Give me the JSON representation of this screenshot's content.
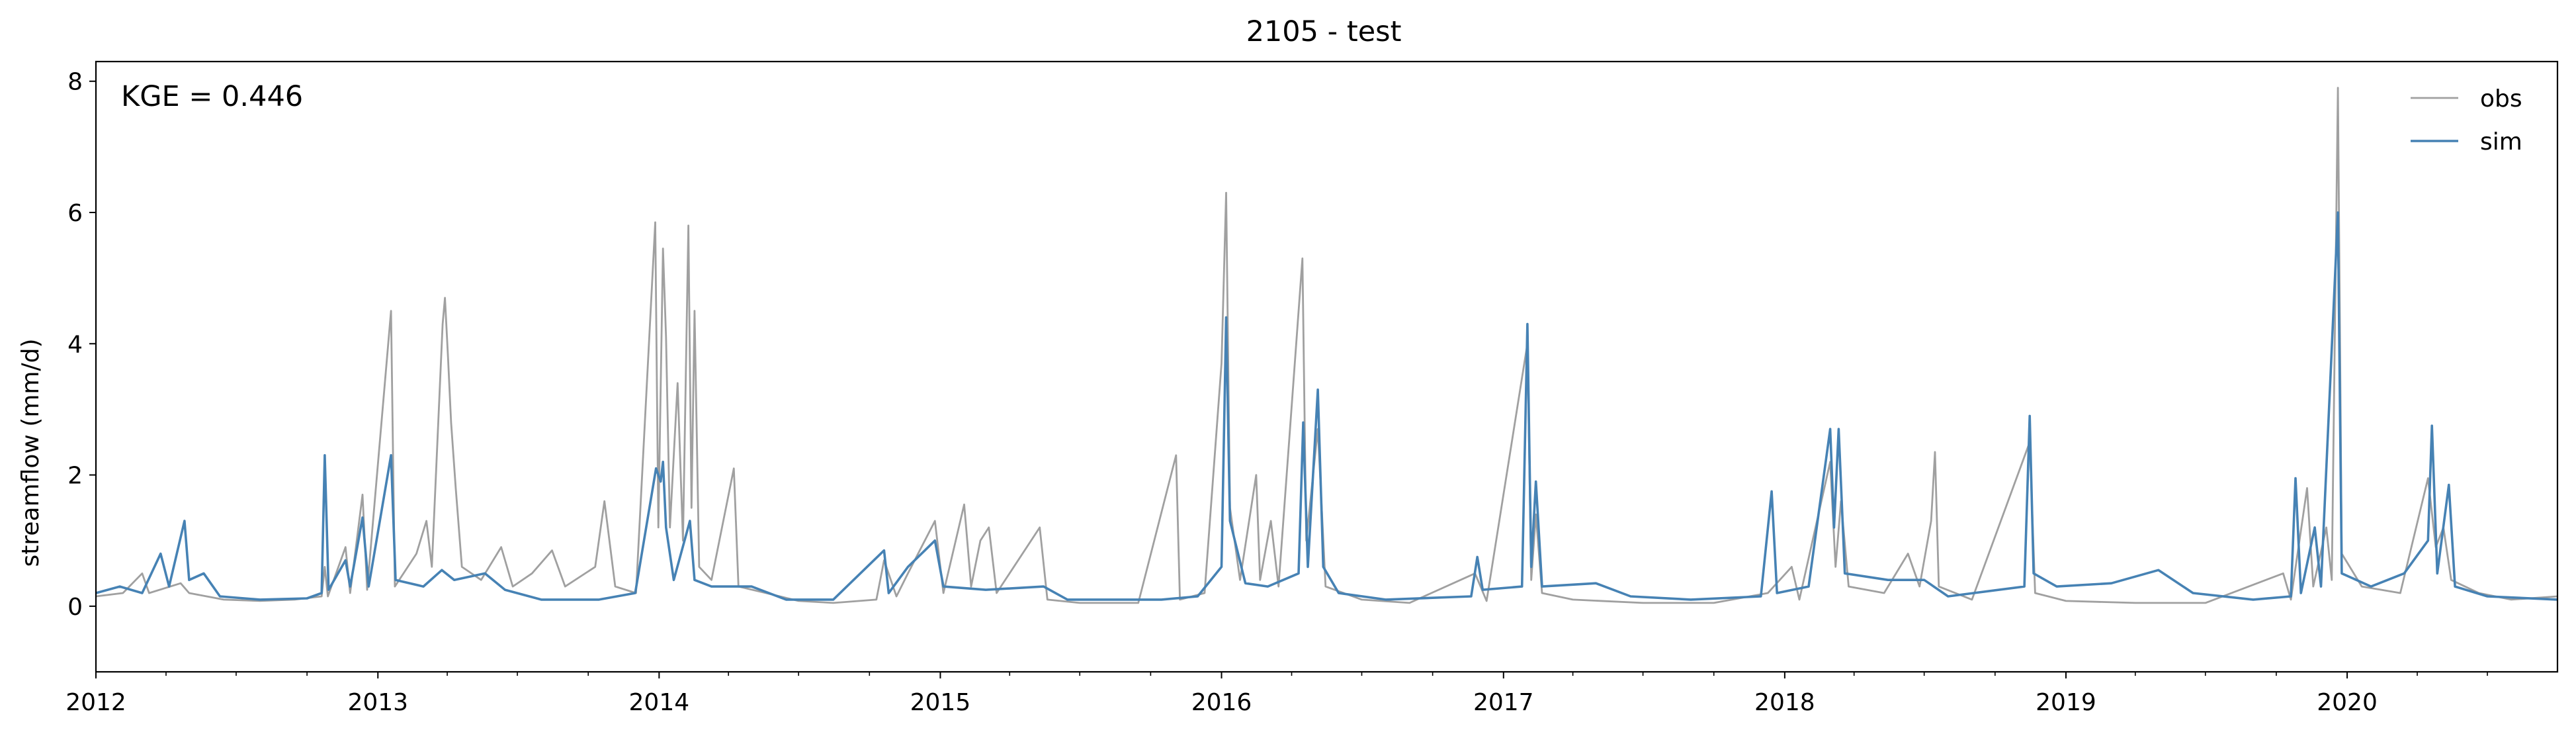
{
  "chart_data": {
    "type": "line",
    "title": "2105 - test",
    "xlabel": "",
    "ylabel": "streamflow (mm/d)",
    "annotation": "KGE = 0.446",
    "x_ticks": [
      "2012",
      "2013",
      "2014",
      "2015",
      "2016",
      "2017",
      "2018",
      "2019",
      "2020"
    ],
    "xlim": [
      "2012-01-01",
      "2020-09-30"
    ],
    "ylim": [
      -1,
      8.3
    ],
    "y_ticks": [
      0,
      2,
      4,
      6,
      8
    ],
    "grid": false,
    "legend_position": "top-right",
    "series": [
      {
        "name": "obs",
        "color": "#a0a0a0",
        "points": [
          [
            "2012-01-01",
            0.15
          ],
          [
            "2012-02-05",
            0.2
          ],
          [
            "2012-03-01",
            0.5
          ],
          [
            "2012-03-10",
            0.2
          ],
          [
            "2012-04-20",
            0.35
          ],
          [
            "2012-05-01",
            0.2
          ],
          [
            "2012-06-15",
            0.1
          ],
          [
            "2012-08-01",
            0.08
          ],
          [
            "2012-09-15",
            0.1
          ],
          [
            "2012-10-20",
            0.15
          ],
          [
            "2012-10-24",
            0.6
          ],
          [
            "2012-10-28",
            0.15
          ],
          [
            "2012-11-20",
            0.9
          ],
          [
            "2012-11-26",
            0.2
          ],
          [
            "2012-12-12",
            1.7
          ],
          [
            "2012-12-18",
            0.25
          ],
          [
            "2013-01-18",
            4.5
          ],
          [
            "2013-01-23",
            0.3
          ],
          [
            "2013-02-20",
            0.8
          ],
          [
            "2013-03-05",
            1.3
          ],
          [
            "2013-03-12",
            0.6
          ],
          [
            "2013-03-26",
            4.3
          ],
          [
            "2013-03-29",
            4.7
          ],
          [
            "2013-04-02",
            3.8
          ],
          [
            "2013-04-06",
            2.8
          ],
          [
            "2013-04-12",
            1.8
          ],
          [
            "2013-04-20",
            0.6
          ],
          [
            "2013-05-15",
            0.4
          ],
          [
            "2013-06-10",
            0.9
          ],
          [
            "2013-06-25",
            0.3
          ],
          [
            "2013-07-20",
            0.5
          ],
          [
            "2013-08-15",
            0.85
          ],
          [
            "2013-09-01",
            0.3
          ],
          [
            "2013-10-10",
            0.6
          ],
          [
            "2013-10-22",
            1.6
          ],
          [
            "2013-11-05",
            0.3
          ],
          [
            "2013-12-02",
            0.2
          ],
          [
            "2013-12-27",
            5.85
          ],
          [
            "2013-12-31",
            1.2
          ],
          [
            "2014-01-06",
            5.45
          ],
          [
            "2014-01-10",
            4.1
          ],
          [
            "2014-01-15",
            1.2
          ],
          [
            "2014-01-25",
            3.4
          ],
          [
            "2014-02-01",
            1.0
          ],
          [
            "2014-02-08",
            5.8
          ],
          [
            "2014-02-12",
            1.5
          ],
          [
            "2014-02-16",
            4.5
          ],
          [
            "2014-02-22",
            0.6
          ],
          [
            "2014-03-10",
            0.4
          ],
          [
            "2014-04-08",
            2.1
          ],
          [
            "2014-04-14",
            0.3
          ],
          [
            "2014-05-20",
            0.2
          ],
          [
            "2014-07-01",
            0.08
          ],
          [
            "2014-08-15",
            0.05
          ],
          [
            "2014-10-10",
            0.1
          ],
          [
            "2014-10-20",
            0.7
          ],
          [
            "2014-11-05",
            0.15
          ],
          [
            "2014-11-20",
            0.5
          ],
          [
            "2014-12-25",
            1.3
          ],
          [
            "2015-01-05",
            0.2
          ],
          [
            "2015-02-01",
            1.55
          ],
          [
            "2015-02-10",
            0.3
          ],
          [
            "2015-02-22",
            1.0
          ],
          [
            "2015-03-05",
            1.2
          ],
          [
            "2015-03-15",
            0.2
          ],
          [
            "2015-05-10",
            1.2
          ],
          [
            "2015-05-20",
            0.1
          ],
          [
            "2015-07-01",
            0.05
          ],
          [
            "2015-09-15",
            0.05
          ],
          [
            "2015-11-03",
            2.3
          ],
          [
            "2015-11-08",
            0.1
          ],
          [
            "2015-12-10",
            0.2
          ],
          [
            "2016-01-01",
            3.7
          ],
          [
            "2016-01-07",
            6.3
          ],
          [
            "2016-01-12",
            1.5
          ],
          [
            "2016-01-25",
            0.4
          ],
          [
            "2016-02-15",
            2.0
          ],
          [
            "2016-02-20",
            0.4
          ],
          [
            "2016-03-05",
            1.3
          ],
          [
            "2016-03-15",
            0.3
          ],
          [
            "2016-04-15",
            5.3
          ],
          [
            "2016-04-20",
            1.0
          ],
          [
            "2016-05-05",
            2.7
          ],
          [
            "2016-05-15",
            0.3
          ],
          [
            "2016-07-01",
            0.1
          ],
          [
            "2016-09-01",
            0.05
          ],
          [
            "2016-11-25",
            0.5
          ],
          [
            "2016-12-10",
            0.08
          ],
          [
            "2017-02-01",
            4.0
          ],
          [
            "2017-02-06",
            0.4
          ],
          [
            "2017-02-12",
            1.4
          ],
          [
            "2017-02-20",
            0.2
          ],
          [
            "2017-04-01",
            0.1
          ],
          [
            "2017-07-01",
            0.05
          ],
          [
            "2017-10-01",
            0.05
          ],
          [
            "2017-12-10",
            0.2
          ],
          [
            "2018-01-10",
            0.6
          ],
          [
            "2018-01-20",
            0.1
          ],
          [
            "2018-03-01",
            2.2
          ],
          [
            "2018-03-08",
            0.6
          ],
          [
            "2018-03-15",
            1.6
          ],
          [
            "2018-03-25",
            0.3
          ],
          [
            "2018-05-10",
            0.2
          ],
          [
            "2018-06-10",
            0.8
          ],
          [
            "2018-06-25",
            0.3
          ],
          [
            "2018-07-10",
            1.3
          ],
          [
            "2018-07-15",
            2.35
          ],
          [
            "2018-07-20",
            0.3
          ],
          [
            "2018-09-01",
            0.1
          ],
          [
            "2018-11-15",
            2.5
          ],
          [
            "2018-11-22",
            0.2
          ],
          [
            "2019-01-01",
            0.08
          ],
          [
            "2019-04-01",
            0.05
          ],
          [
            "2019-07-01",
            0.05
          ],
          [
            "2019-10-10",
            0.5
          ],
          [
            "2019-10-20",
            0.1
          ],
          [
            "2019-11-10",
            1.8
          ],
          [
            "2019-11-18",
            0.3
          ],
          [
            "2019-12-05",
            1.2
          ],
          [
            "2019-12-12",
            0.4
          ],
          [
            "2019-12-20",
            7.9
          ],
          [
            "2019-12-25",
            0.8
          ],
          [
            "2020-01-20",
            0.3
          ],
          [
            "2020-03-10",
            0.2
          ],
          [
            "2020-04-15",
            1.95
          ],
          [
            "2020-04-25",
            0.9
          ],
          [
            "2020-05-05",
            1.2
          ],
          [
            "2020-05-15",
            0.4
          ],
          [
            "2020-06-20",
            0.2
          ],
          [
            "2020-08-01",
            0.1
          ],
          [
            "2020-09-30",
            0.15
          ]
        ]
      },
      {
        "name": "sim",
        "color": "#4682b4",
        "points": [
          [
            "2012-01-01",
            0.2
          ],
          [
            "2012-02-01",
            0.3
          ],
          [
            "2012-03-01",
            0.2
          ],
          [
            "2012-03-25",
            0.8
          ],
          [
            "2012-04-05",
            0.3
          ],
          [
            "2012-04-25",
            1.3
          ],
          [
            "2012-05-01",
            0.4
          ],
          [
            "2012-05-20",
            0.5
          ],
          [
            "2012-06-10",
            0.15
          ],
          [
            "2012-08-01",
            0.1
          ],
          [
            "2012-10-01",
            0.12
          ],
          [
            "2012-10-20",
            0.2
          ],
          [
            "2012-10-24",
            2.3
          ],
          [
            "2012-10-29",
            0.25
          ],
          [
            "2012-11-20",
            0.7
          ],
          [
            "2012-11-26",
            0.3
          ],
          [
            "2012-12-12",
            1.35
          ],
          [
            "2012-12-20",
            0.3
          ],
          [
            "2013-01-18",
            2.3
          ],
          [
            "2013-01-24",
            0.4
          ],
          [
            "2013-03-01",
            0.3
          ],
          [
            "2013-03-25",
            0.55
          ],
          [
            "2013-04-10",
            0.4
          ],
          [
            "2013-05-20",
            0.5
          ],
          [
            "2013-06-15",
            0.25
          ],
          [
            "2013-08-01",
            0.1
          ],
          [
            "2013-10-15",
            0.1
          ],
          [
            "2013-12-01",
            0.2
          ],
          [
            "2013-12-28",
            2.1
          ],
          [
            "2014-01-03",
            1.9
          ],
          [
            "2014-01-06",
            2.2
          ],
          [
            "2014-01-10",
            1.2
          ],
          [
            "2014-01-20",
            0.4
          ],
          [
            "2014-02-10",
            1.3
          ],
          [
            "2014-02-16",
            0.4
          ],
          [
            "2014-03-10",
            0.3
          ],
          [
            "2014-05-01",
            0.3
          ],
          [
            "2014-06-15",
            0.1
          ],
          [
            "2014-08-15",
            0.1
          ],
          [
            "2014-10-20",
            0.85
          ],
          [
            "2014-10-26",
            0.2
          ],
          [
            "2014-11-20",
            0.6
          ],
          [
            "2014-12-25",
            1.0
          ],
          [
            "2015-01-05",
            0.3
          ],
          [
            "2015-03-01",
            0.25
          ],
          [
            "2015-05-15",
            0.3
          ],
          [
            "2015-06-15",
            0.1
          ],
          [
            "2015-10-15",
            0.1
          ],
          [
            "2015-12-01",
            0.15
          ],
          [
            "2016-01-01",
            0.6
          ],
          [
            "2016-01-07",
            4.4
          ],
          [
            "2016-01-12",
            1.3
          ],
          [
            "2016-02-01",
            0.35
          ],
          [
            "2016-03-01",
            0.3
          ],
          [
            "2016-04-10",
            0.5
          ],
          [
            "2016-04-16",
            2.8
          ],
          [
            "2016-04-22",
            0.6
          ],
          [
            "2016-05-05",
            3.3
          ],
          [
            "2016-05-12",
            0.6
          ],
          [
            "2016-06-01",
            0.2
          ],
          [
            "2016-08-01",
            0.1
          ],
          [
            "2016-11-20",
            0.15
          ],
          [
            "2016-11-28",
            0.75
          ],
          [
            "2016-12-05",
            0.25
          ],
          [
            "2017-01-25",
            0.3
          ],
          [
            "2017-02-01",
            4.3
          ],
          [
            "2017-02-06",
            0.6
          ],
          [
            "2017-02-12",
            1.9
          ],
          [
            "2017-02-20",
            0.3
          ],
          [
            "2017-05-01",
            0.35
          ],
          [
            "2017-06-15",
            0.15
          ],
          [
            "2017-09-01",
            0.1
          ],
          [
            "2017-12-01",
            0.15
          ],
          [
            "2017-12-15",
            1.75
          ],
          [
            "2017-12-22",
            0.2
          ],
          [
            "2018-02-01",
            0.3
          ],
          [
            "2018-03-01",
            2.7
          ],
          [
            "2018-03-06",
            1.2
          ],
          [
            "2018-03-12",
            2.7
          ],
          [
            "2018-03-20",
            0.5
          ],
          [
            "2018-05-15",
            0.4
          ],
          [
            "2018-07-01",
            0.4
          ],
          [
            "2018-08-01",
            0.15
          ],
          [
            "2018-11-08",
            0.3
          ],
          [
            "2018-11-15",
            2.9
          ],
          [
            "2018-11-20",
            0.5
          ],
          [
            "2018-12-20",
            0.3
          ],
          [
            "2019-03-01",
            0.35
          ],
          [
            "2019-05-01",
            0.55
          ],
          [
            "2019-06-15",
            0.2
          ],
          [
            "2019-09-01",
            0.1
          ],
          [
            "2019-10-20",
            0.15
          ],
          [
            "2019-10-26",
            1.95
          ],
          [
            "2019-11-02",
            0.2
          ],
          [
            "2019-11-20",
            1.2
          ],
          [
            "2019-11-28",
            0.3
          ],
          [
            "2019-12-20",
            6.0
          ],
          [
            "2019-12-25",
            0.5
          ],
          [
            "2020-02-01",
            0.3
          ],
          [
            "2020-03-15",
            0.5
          ],
          [
            "2020-04-15",
            1.0
          ],
          [
            "2020-04-20",
            2.75
          ],
          [
            "2020-04-27",
            0.5
          ],
          [
            "2020-05-12",
            1.85
          ],
          [
            "2020-05-20",
            0.3
          ],
          [
            "2020-07-01",
            0.15
          ],
          [
            "2020-09-30",
            0.1
          ]
        ]
      }
    ]
  }
}
